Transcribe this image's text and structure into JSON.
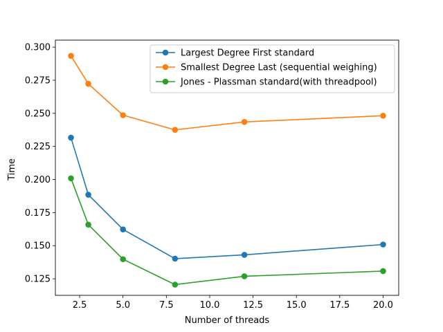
{
  "chart_data": {
    "type": "line",
    "title": "",
    "xlabel": "Number of threads",
    "ylabel": "Time",
    "x": [
      2,
      3,
      5,
      8,
      12,
      20
    ],
    "xlim": [
      1.1,
      20.9
    ],
    "ylim": [
      0.1125,
      0.3053
    ],
    "xticks": [
      2.5,
      5.0,
      7.5,
      10.0,
      12.5,
      15.0,
      17.5,
      20.0
    ],
    "xtick_labels": [
      "2.5",
      "5.0",
      "7.5",
      "10.0",
      "12.5",
      "15.0",
      "17.5",
      "20.0"
    ],
    "yticks": [
      0.125,
      0.15,
      0.175,
      0.2,
      0.225,
      0.25,
      0.275,
      0.3
    ],
    "ytick_labels": [
      "0.125",
      "0.150",
      "0.175",
      "0.200",
      "0.225",
      "0.250",
      "0.275",
      "0.300"
    ],
    "grid": false,
    "legend_position": "top-right",
    "series": [
      {
        "name": "Largest Degree First standard",
        "color": "#1f77b4",
        "values": [
          0.2316,
          0.1885,
          0.1623,
          0.1402,
          0.1431,
          0.1509
        ]
      },
      {
        "name": "Smallest Degree Last (sequential weighing)",
        "color": "#ff7f0e",
        "values": [
          0.2934,
          0.2723,
          0.2486,
          0.2375,
          0.2435,
          0.2482
        ]
      },
      {
        "name": "Jones - Plassman standard(with threadpool)",
        "color": "#2ca02c",
        "values": [
          0.2009,
          0.1659,
          0.1398,
          0.1206,
          0.1269,
          0.1308
        ]
      }
    ]
  }
}
